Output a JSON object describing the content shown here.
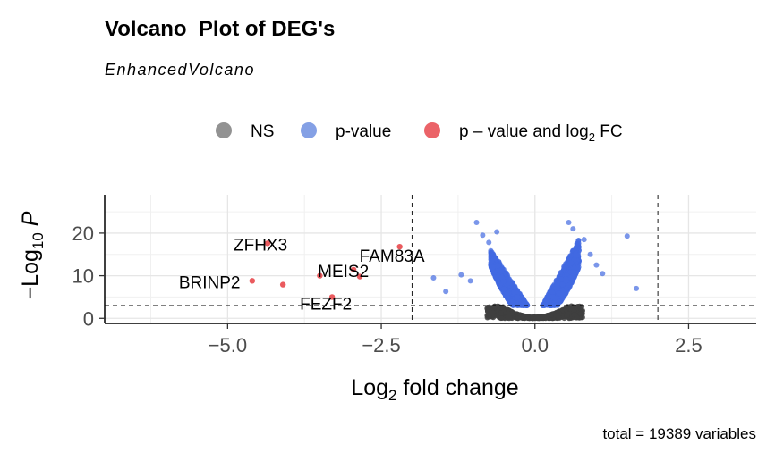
{
  "chart_data": {
    "type": "scatter",
    "title": "Volcano_Plot of DEG's",
    "subtitle": "EnhancedVolcano",
    "xlabel": "Log2 fold change",
    "ylabel": "-Log10 P",
    "xlim": [
      -7.0,
      3.6
    ],
    "ylim": [
      -1.2,
      29
    ],
    "x_ticks": [
      -5.0,
      -2.5,
      0.0,
      2.5
    ],
    "x_tick_labels": [
      "-5.0",
      "-2.5",
      "0.0",
      "2.5"
    ],
    "y_ticks": [
      0,
      10,
      20
    ],
    "y_tick_labels": [
      "0",
      "10",
      "20"
    ],
    "grid": true,
    "legend_position": "top",
    "legend": [
      {
        "label": "NS",
        "color": "#7f7f7f"
      },
      {
        "label": "p-value",
        "color": "#6f8fe0"
      },
      {
        "label": "p – value and log2 FC",
        "color": "#e8484d"
      }
    ],
    "cutoffs": {
      "log2fc": [
        -2,
        2
      ],
      "neg_log10_p": 3
    },
    "colors": {
      "ns": "#3f3f3f",
      "p_value": "#4169e1",
      "p_and_fc": "#e8484d"
    },
    "labeled_genes": [
      {
        "name": "ZFHX3",
        "x": -4.35,
        "y": 17.6
      },
      {
        "name": "FAM83A",
        "x": -2.2,
        "y": 16.8
      },
      {
        "name": "BRINP2",
        "x": -4.6,
        "y": 8.8
      },
      {
        "name": "MEIS2",
        "x": -2.95,
        "y": 11.4
      },
      {
        "name": "FEZF2",
        "x": -3.3,
        "y": 5.0
      }
    ],
    "red_points": [
      {
        "x": -4.35,
        "y": 17.6
      },
      {
        "x": -2.2,
        "y": 16.8
      },
      {
        "x": -4.6,
        "y": 8.8
      },
      {
        "x": -4.1,
        "y": 7.9
      },
      {
        "x": -3.5,
        "y": 10.0
      },
      {
        "x": -2.95,
        "y": 11.4
      },
      {
        "x": -2.85,
        "y": 9.8
      },
      {
        "x": -3.3,
        "y": 5.0
      }
    ],
    "blue_outliers": [
      {
        "x": -1.65,
        "y": 9.5
      },
      {
        "x": -1.45,
        "y": 6.3
      },
      {
        "x": -1.2,
        "y": 10.2
      },
      {
        "x": -1.05,
        "y": 8.8
      },
      {
        "x": -0.95,
        "y": 22.5
      },
      {
        "x": -0.85,
        "y": 19.5
      },
      {
        "x": -0.75,
        "y": 17.8
      },
      {
        "x": -0.7,
        "y": 15.5
      },
      {
        "x": -0.62,
        "y": 20.3
      },
      {
        "x": 0.55,
        "y": 22.5
      },
      {
        "x": 0.62,
        "y": 21.0
      },
      {
        "x": 0.8,
        "y": 18.5
      },
      {
        "x": 0.9,
        "y": 15.0
      },
      {
        "x": 1.0,
        "y": 12.5
      },
      {
        "x": 1.1,
        "y": 10.5
      },
      {
        "x": 1.5,
        "y": 19.3
      },
      {
        "x": 1.65,
        "y": 7.0
      }
    ],
    "caption": "total = 19389 variables"
  }
}
